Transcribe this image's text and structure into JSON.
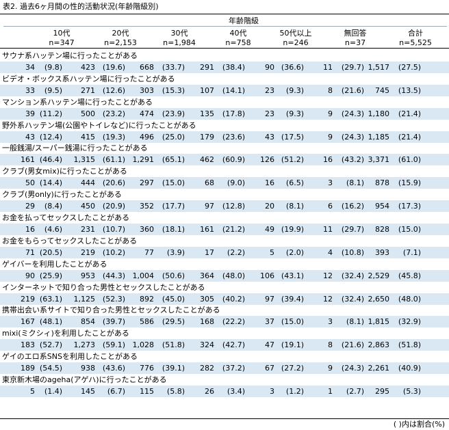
{
  "title": "表2. 過去6ヶ月間の性的活動状況(年齢階級別)",
  "group_caption": "年齢階級",
  "columns": [
    {
      "label": "10代",
      "n": "n=347"
    },
    {
      "label": "20代",
      "n": "n=2,153"
    },
    {
      "label": "30代",
      "n": "n=1,984"
    },
    {
      "label": "40代",
      "n": "n=758"
    },
    {
      "label": "50代以上",
      "n": "n=246"
    },
    {
      "label": "無回答",
      "n": "n=37"
    },
    {
      "label": "合計",
      "n": "n=5,525"
    }
  ],
  "rows": [
    {
      "label": "サウナ系ハッテン場に行ったことがある",
      "cells": [
        [
          "34",
          "(9.8)"
        ],
        [
          "423",
          "(19.6)"
        ],
        [
          "668",
          "(33.7)"
        ],
        [
          "291",
          "(38.4)"
        ],
        [
          "90",
          "(36.6)"
        ],
        [
          "11",
          "(29.7)"
        ],
        [
          "1,517",
          "(27.5)"
        ]
      ]
    },
    {
      "label": "ビデオ・ボックス系ハッテン場に行ったことがある",
      "cells": [
        [
          "33",
          "(9.5)"
        ],
        [
          "271",
          "(12.6)"
        ],
        [
          "303",
          "(15.3)"
        ],
        [
          "107",
          "(14.1)"
        ],
        [
          "23",
          "(9.3)"
        ],
        [
          "8",
          "(21.6)"
        ],
        [
          "745",
          "(13.5)"
        ]
      ]
    },
    {
      "label": "マンション系ハッテン場に行ったことがある",
      "cells": [
        [
          "39",
          "(11.2)"
        ],
        [
          "500",
          "(23.2)"
        ],
        [
          "474",
          "(23.9)"
        ],
        [
          "135",
          "(17.8)"
        ],
        [
          "23",
          "(9.3)"
        ],
        [
          "9",
          "(24.3)"
        ],
        [
          "1,180",
          "(21.4)"
        ]
      ]
    },
    {
      "label": "野外系ハッテン場(公園やトイレなど)に行ったことがある",
      "cells": [
        [
          "43",
          "(12.4)"
        ],
        [
          "415",
          "(19.3)"
        ],
        [
          "496",
          "(25.0)"
        ],
        [
          "179",
          "(23.6)"
        ],
        [
          "43",
          "(17.5)"
        ],
        [
          "9",
          "(24.3)"
        ],
        [
          "1,185",
          "(21.4)"
        ]
      ]
    },
    {
      "label": "一般銭湯/スーパー銭湯に行ったことがある",
      "cells": [
        [
          "161",
          "(46.4)"
        ],
        [
          "1,315",
          "(61.1)"
        ],
        [
          "1,291",
          "(65.1)"
        ],
        [
          "462",
          "(60.9)"
        ],
        [
          "126",
          "(51.2)"
        ],
        [
          "16",
          "(43.2)"
        ],
        [
          "3,371",
          "(61.0)"
        ]
      ]
    },
    {
      "label": "クラブ(男女mix)に行ったことがある",
      "cells": [
        [
          "50",
          "(14.4)"
        ],
        [
          "444",
          "(20.6)"
        ],
        [
          "297",
          "(15.0)"
        ],
        [
          "68",
          "(9.0)"
        ],
        [
          "16",
          "(6.5)"
        ],
        [
          "3",
          "(8.1)"
        ],
        [
          "878",
          "(15.9)"
        ]
      ]
    },
    {
      "label": "クラブ(男only)に行ったことがある",
      "cells": [
        [
          "29",
          "(8.4)"
        ],
        [
          "450",
          "(20.9)"
        ],
        [
          "352",
          "(17.7)"
        ],
        [
          "97",
          "(12.8)"
        ],
        [
          "20",
          "(8.1)"
        ],
        [
          "6",
          "(16.2)"
        ],
        [
          "954",
          "(17.3)"
        ]
      ]
    },
    {
      "label": "お金を払ってセックスしたことがある",
      "cells": [
        [
          "16",
          "(4.6)"
        ],
        [
          "231",
          "(10.7)"
        ],
        [
          "360",
          "(18.1)"
        ],
        [
          "161",
          "(21.2)"
        ],
        [
          "49",
          "(19.9)"
        ],
        [
          "11",
          "(29.7)"
        ],
        [
          "828",
          "(15.0)"
        ]
      ]
    },
    {
      "label": "お金をもらってセックスしたことがある",
      "cells": [
        [
          "71",
          "(20.5)"
        ],
        [
          "219",
          "(10.2)"
        ],
        [
          "77",
          "(3.9)"
        ],
        [
          "17",
          "(2.2)"
        ],
        [
          "5",
          "(2.0)"
        ],
        [
          "4",
          "(10.8)"
        ],
        [
          "393",
          "(7.1)"
        ]
      ]
    },
    {
      "label": "ゲイバーを利用したことがある",
      "cells": [
        [
          "90",
          "(25.9)"
        ],
        [
          "953",
          "(44.3)"
        ],
        [
          "1,004",
          "(50.6)"
        ],
        [
          "364",
          "(48.0)"
        ],
        [
          "106",
          "(43.1)"
        ],
        [
          "12",
          "(32.4)"
        ],
        [
          "2,529",
          "(45.8)"
        ]
      ]
    },
    {
      "label": "インターネットで知り合った男性とセックスしたことがある",
      "cells": [
        [
          "219",
          "(63.1)"
        ],
        [
          "1,125",
          "(52.3)"
        ],
        [
          "892",
          "(45.0)"
        ],
        [
          "305",
          "(40.2)"
        ],
        [
          "97",
          "(39.4)"
        ],
        [
          "12",
          "(32.4)"
        ],
        [
          "2,650",
          "(48.0)"
        ]
      ]
    },
    {
      "label": "携帯出会い系サイトで知り合った男性とセックスしたことがある",
      "cells": [
        [
          "167",
          "(48.1)"
        ],
        [
          "854",
          "(39.7)"
        ],
        [
          "586",
          "(29.5)"
        ],
        [
          "168",
          "(22.2)"
        ],
        [
          "37",
          "(15.0)"
        ],
        [
          "3",
          "(8.1)"
        ],
        [
          "1,815",
          "(32.9)"
        ]
      ]
    },
    {
      "label": "mixi(ミクシィ)を利用したことがある",
      "cells": [
        [
          "183",
          "(52.7)"
        ],
        [
          "1,273",
          "(59.1)"
        ],
        [
          "1,028",
          "(51.8)"
        ],
        [
          "324",
          "(42.7)"
        ],
        [
          "47",
          "(19.1)"
        ],
        [
          "8",
          "(21.6)"
        ],
        [
          "2,863",
          "(51.8)"
        ]
      ]
    },
    {
      "label": "ゲイのエロ系SNSを利用したことがある",
      "cells": [
        [
          "189",
          "(54.5)"
        ],
        [
          "938",
          "(43.6)"
        ],
        [
          "776",
          "(39.1)"
        ],
        [
          "282",
          "(37.2)"
        ],
        [
          "67",
          "(27.2)"
        ],
        [
          "9",
          "(24.3)"
        ],
        [
          "2,261",
          "(40.9)"
        ]
      ]
    },
    {
      "label": "東京新木場のageha(アゲハ)に行ったことがある",
      "cells": [
        [
          "5",
          "(1.4)"
        ],
        [
          "145",
          "(6.7)"
        ],
        [
          "115",
          "(5.8)"
        ],
        [
          "26",
          "(3.4)"
        ],
        [
          "3",
          "(1.2)"
        ],
        [
          "1",
          "(2.7)"
        ],
        [
          "295",
          "(5.3)"
        ]
      ]
    }
  ],
  "footnote": "( )内は割合(%)"
}
